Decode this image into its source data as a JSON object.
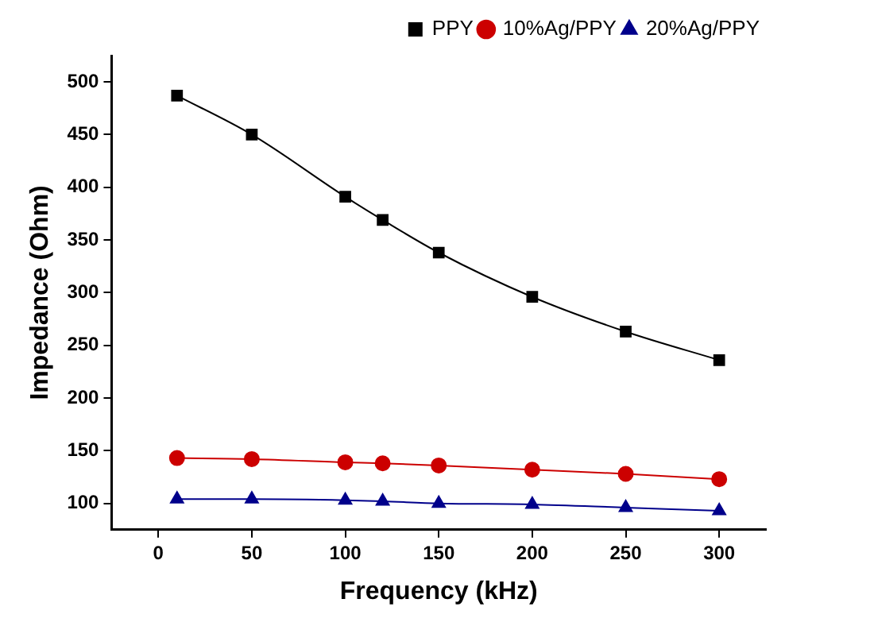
{
  "chart_data": {
    "type": "line",
    "xlabel": "Frequency (kHz)",
    "ylabel": "Impedance (Ohm)",
    "x": [
      10,
      50,
      100,
      120,
      150,
      200,
      250,
      300
    ],
    "series": [
      {
        "name": "PPY",
        "color": "#000000",
        "marker": "square",
        "values": [
          487,
          450,
          391,
          369,
          338,
          296,
          263,
          236
        ]
      },
      {
        "name": "10%Ag/PPY",
        "color": "#cc0000",
        "marker": "circle",
        "values": [
          143,
          142,
          139,
          138,
          136,
          132,
          128,
          123
        ]
      },
      {
        "name": "20%Ag/PPY",
        "color": "#00008b",
        "marker": "triangle",
        "values": [
          104,
          104,
          103,
          102,
          100,
          99,
          96,
          93
        ]
      }
    ],
    "xlim": [
      -25,
      325
    ],
    "xticks": [
      0,
      50,
      100,
      150,
      200,
      250,
      300
    ],
    "ylim": [
      75,
      525
    ],
    "yticks": [
      100,
      150,
      200,
      250,
      300,
      350,
      400,
      450,
      500
    ],
    "grid": false,
    "legend": "top right",
    "line_style": "solid"
  }
}
